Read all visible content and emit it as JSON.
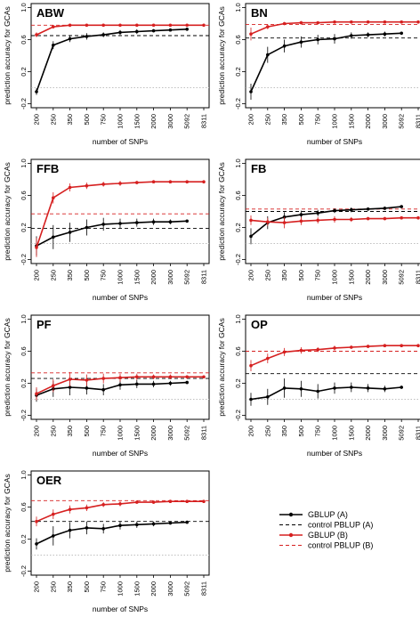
{
  "figure": {
    "x_categories": [
      "200",
      "250",
      "350",
      "500",
      "750",
      "1000",
      "1500",
      "2000",
      "3000",
      "5092",
      "8311"
    ],
    "ylabel": "prediction accuracy for GCAs",
    "xlabel": "number of SNPs",
    "y_ticks": [
      "-0.2",
      "0.2",
      "0.6",
      "1.0"
    ],
    "ylim": [
      -0.25,
      1.05
    ]
  },
  "legend": {
    "entries": [
      {
        "label": "GBLUP (A)",
        "color": "#000000",
        "style": "solid-point"
      },
      {
        "label": "control PBLUP (A)",
        "color": "#000000",
        "style": "dashed"
      },
      {
        "label": "GBLUP (B)",
        "color": "#d62020",
        "style": "solid-point"
      },
      {
        "label": "control PBLUP (B)",
        "color": "#d62020",
        "style": "dashed"
      }
    ]
  },
  "colors": {
    "series_a": "#000000",
    "series_b": "#d62020",
    "zero_line": "#aaaaaa"
  },
  "chart_data": [
    {
      "type": "line",
      "title": "ABW",
      "series": [
        {
          "name": "GBLUP (A)",
          "values": [
            -0.05,
            0.53,
            0.61,
            0.64,
            0.66,
            0.69,
            0.7,
            0.71,
            0.72,
            0.73
          ],
          "err": [
            0.04,
            0.05,
            0.04,
            0.04,
            0.03,
            0.03,
            0.03,
            0.02,
            0.02,
            0.02
          ]
        },
        {
          "name": "GBLUP (B)",
          "values": [
            0.66,
            0.76,
            0.78,
            0.78,
            0.78,
            0.78,
            0.78,
            0.78,
            0.78,
            0.78,
            0.78
          ],
          "err": [
            0.03,
            0.02,
            0.02,
            0.01,
            0.01,
            0.01,
            0.01,
            0.01,
            0.01,
            0.01,
            0.01
          ]
        }
      ],
      "control_a": 0.65,
      "control_b": 0.78
    },
    {
      "type": "line",
      "title": "BN",
      "series": [
        {
          "name": "GBLUP (A)",
          "values": [
            -0.05,
            0.41,
            0.52,
            0.57,
            0.6,
            0.61,
            0.65,
            0.66,
            0.67,
            0.68
          ],
          "err": [
            0.1,
            0.1,
            0.08,
            0.07,
            0.06,
            0.06,
            0.04,
            0.03,
            0.03,
            0.02
          ]
        },
        {
          "name": "GBLUP (B)",
          "values": [
            0.67,
            0.76,
            0.8,
            0.81,
            0.81,
            0.82,
            0.82,
            0.82,
            0.82,
            0.82,
            0.82
          ],
          "err": [
            0.08,
            0.03,
            0.02,
            0.02,
            0.01,
            0.01,
            0.01,
            0.01,
            0.01,
            0.01,
            0.01
          ]
        }
      ],
      "control_a": 0.62,
      "control_b": 0.79
    },
    {
      "type": "line",
      "title": "FFB",
      "series": [
        {
          "name": "GBLUP (A)",
          "values": [
            -0.03,
            0.08,
            0.14,
            0.2,
            0.24,
            0.25,
            0.26,
            0.27,
            0.27,
            0.28
          ],
          "err": [
            0.12,
            0.15,
            0.12,
            0.1,
            0.08,
            0.06,
            0.05,
            0.04,
            0.03,
            0.02
          ]
        },
        {
          "name": "GBLUP (B)",
          "values": [
            -0.05,
            0.57,
            0.7,
            0.72,
            0.74,
            0.75,
            0.76,
            0.77,
            0.77,
            0.77,
            0.77
          ],
          "err": [
            0.12,
            0.07,
            0.05,
            0.04,
            0.03,
            0.03,
            0.02,
            0.02,
            0.02,
            0.01,
            0.01
          ]
        }
      ],
      "control_a": 0.19,
      "control_b": 0.37
    },
    {
      "type": "line",
      "title": "FB",
      "series": [
        {
          "name": "GBLUP (A)",
          "values": [
            0.09,
            0.26,
            0.33,
            0.36,
            0.38,
            0.41,
            0.42,
            0.43,
            0.44,
            0.46
          ],
          "err": [
            0.1,
            0.08,
            0.06,
            0.05,
            0.04,
            0.03,
            0.03,
            0.02,
            0.02,
            0.01
          ]
        },
        {
          "name": "GBLUP (B)",
          "values": [
            0.29,
            0.27,
            0.26,
            0.28,
            0.29,
            0.3,
            0.3,
            0.31,
            0.31,
            0.32,
            0.32
          ],
          "err": [
            0.06,
            0.05,
            0.07,
            0.05,
            0.04,
            0.04,
            0.03,
            0.02,
            0.02,
            0.01,
            0.01
          ]
        }
      ],
      "control_a": 0.4,
      "control_b": 0.43
    },
    {
      "type": "line",
      "title": "PF",
      "series": [
        {
          "name": "GBLUP (A)",
          "values": [
            0.05,
            0.13,
            0.15,
            0.14,
            0.12,
            0.18,
            0.19,
            0.19,
            0.2,
            0.21
          ],
          "err": [
            0.08,
            0.1,
            0.1,
            0.08,
            0.07,
            0.06,
            0.05,
            0.04,
            0.03,
            0.02
          ]
        },
        {
          "name": "GBLUP (B)",
          "values": [
            0.07,
            0.17,
            0.25,
            0.24,
            0.26,
            0.27,
            0.28,
            0.28,
            0.28,
            0.28,
            0.28
          ],
          "err": [
            0.08,
            0.08,
            0.09,
            0.07,
            0.06,
            0.05,
            0.04,
            0.03,
            0.03,
            0.02,
            0.01
          ]
        }
      ],
      "control_a": 0.26,
      "control_b": 0.33
    },
    {
      "type": "line",
      "title": "OP",
      "series": [
        {
          "name": "GBLUP (A)",
          "values": [
            0.0,
            0.03,
            0.14,
            0.13,
            0.1,
            0.14,
            0.15,
            0.14,
            0.13,
            0.15
          ],
          "err": [
            0.08,
            0.1,
            0.12,
            0.1,
            0.09,
            0.07,
            0.06,
            0.05,
            0.04,
            0.02
          ]
        },
        {
          "name": "GBLUP (B)",
          "values": [
            0.42,
            0.51,
            0.59,
            0.61,
            0.62,
            0.64,
            0.65,
            0.66,
            0.67,
            0.67,
            0.67
          ],
          "err": [
            0.07,
            0.06,
            0.05,
            0.04,
            0.03,
            0.03,
            0.02,
            0.02,
            0.02,
            0.01,
            0.01
          ]
        }
      ],
      "control_a": 0.32,
      "control_b": 0.6
    },
    {
      "type": "line",
      "title": "OER",
      "series": [
        {
          "name": "GBLUP (A)",
          "values": [
            0.14,
            0.24,
            0.31,
            0.34,
            0.33,
            0.37,
            0.38,
            0.39,
            0.4,
            0.41
          ],
          "err": [
            0.07,
            0.12,
            0.1,
            0.08,
            0.06,
            0.05,
            0.04,
            0.03,
            0.02,
            0.02
          ]
        },
        {
          "name": "GBLUP (B)",
          "values": [
            0.42,
            0.51,
            0.57,
            0.59,
            0.63,
            0.64,
            0.66,
            0.66,
            0.67,
            0.67,
            0.67
          ],
          "err": [
            0.06,
            0.06,
            0.05,
            0.04,
            0.03,
            0.03,
            0.02,
            0.02,
            0.02,
            0.01,
            0.01
          ]
        }
      ],
      "control_a": 0.42,
      "control_b": 0.68
    }
  ]
}
